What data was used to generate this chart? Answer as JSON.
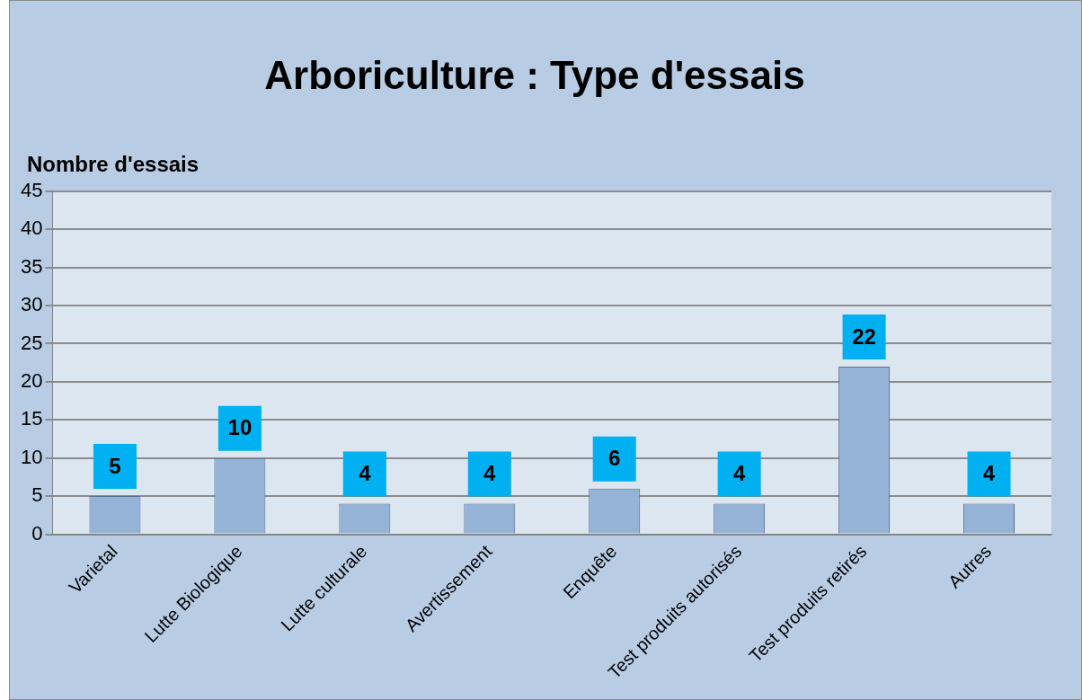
{
  "chart_data": {
    "type": "bar",
    "title": "Arboriculture : Type d'essais",
    "ylabel": "Nombre d'essais",
    "categories": [
      "Varietal",
      "Lutte Biologique",
      "Lutte culturale",
      "Avertissement",
      "Enquête",
      "Test produits autorisés",
      "Test produits retirés",
      "Autres"
    ],
    "values": [
      5,
      10,
      4,
      4,
      6,
      4,
      22,
      4
    ],
    "color": "#95b3d7",
    "ylim": [
      0,
      45
    ],
    "yticks": [
      0,
      5,
      10,
      15,
      20,
      25,
      30,
      35,
      40,
      45
    ],
    "grid": "y",
    "data_labels": true,
    "legend": false
  }
}
